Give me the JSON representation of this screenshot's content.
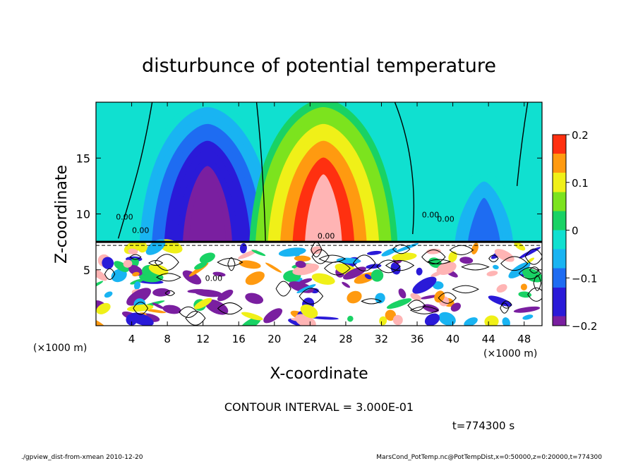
{
  "chart_data": {
    "type": "heatmap",
    "title": "disturbunce of potential temperature",
    "xlabel": "X-coordinate",
    "ylabel": "Z-coordinate",
    "x_unit_left": "(×1000 m)",
    "x_unit_right": "(×1000 m)",
    "x_ticks": [
      4,
      8,
      12,
      16,
      20,
      24,
      28,
      32,
      36,
      40,
      44,
      48
    ],
    "y_ticks": [
      5,
      10,
      15
    ],
    "xlim": [
      0,
      50
    ],
    "ylim": [
      0,
      20
    ],
    "colorbar": {
      "range": [
        -0.2,
        0.2
      ],
      "tick_labels": [
        "0.2",
        "0.1",
        "0",
        "−0.1",
        "−0.2"
      ],
      "tick_values": [
        0.2,
        0.1,
        0,
        -0.1,
        -0.2
      ],
      "stops": [
        {
          "v": -0.2,
          "color": "#7a1fa0"
        },
        {
          "v": -0.18,
          "color": "#2a1ad8"
        },
        {
          "v": -0.12,
          "color": "#1e6cf2"
        },
        {
          "v": -0.08,
          "color": "#19b4f2"
        },
        {
          "v": -0.04,
          "color": "#10e0d0"
        },
        {
          "v": 0.0,
          "color": "#19d264"
        },
        {
          "v": 0.04,
          "color": "#7ce31e"
        },
        {
          "v": 0.08,
          "color": "#f0f018"
        },
        {
          "v": 0.12,
          "color": "#ff9a10"
        },
        {
          "v": 0.16,
          "color": "#ff3010"
        },
        {
          "v": 0.2,
          "color": "#ffb4b4"
        }
      ]
    },
    "contour_interval_text": "CONTOUR INTERVAL = 3.000E-01",
    "time_text": "t=774300 s",
    "contour_labels": [
      "0.00",
      "0.00",
      "0.00",
      "0.00",
      "0.00",
      "0.00"
    ],
    "upper_anomalies": [
      {
        "x": 12.5,
        "z": 11,
        "value": -0.21
      },
      {
        "x": 25.5,
        "z": 11,
        "value": 0.21
      },
      {
        "x": 43.5,
        "z": 10,
        "value": -0.11
      }
    ],
    "inversion_height": 7.5
  },
  "footer": {
    "left": "./gpview_dist-from-xmean  2010-12-20",
    "right": "MarsCond_PotTemp.nc@PotTempDist,x=0:50000,z=0:20000,t=774300"
  }
}
